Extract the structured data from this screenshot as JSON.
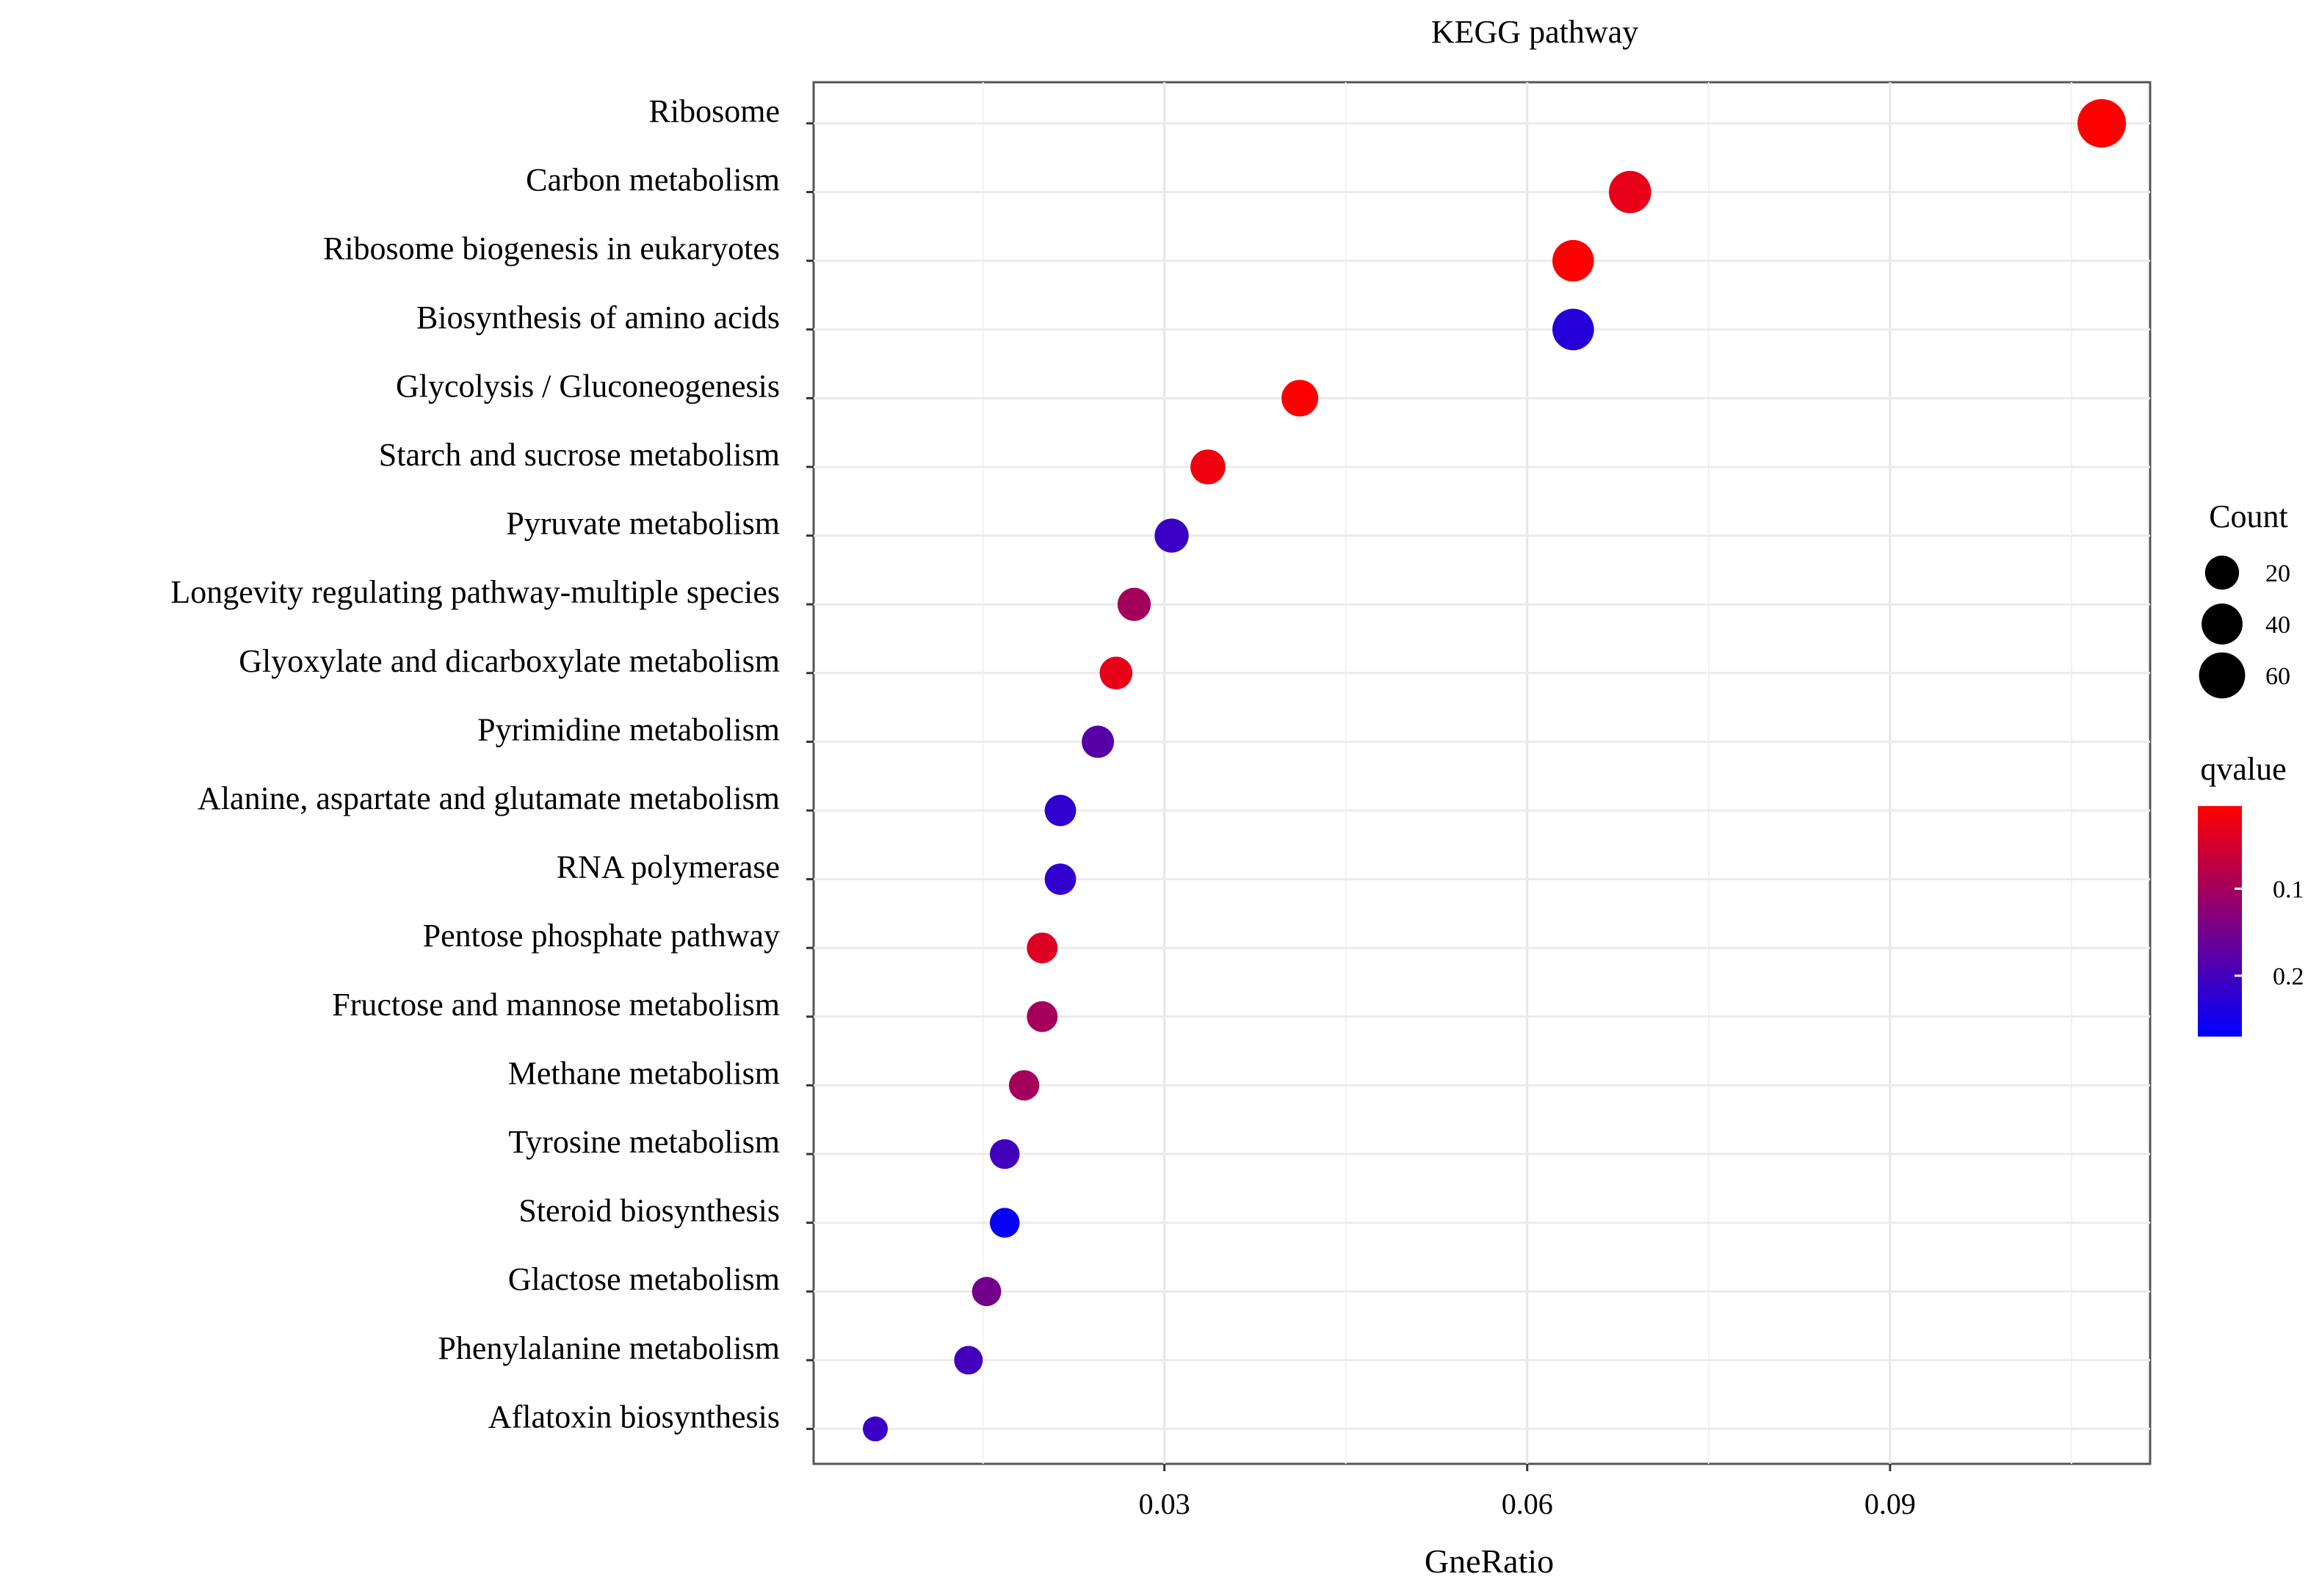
{
  "chart_data": {
    "type": "scatter",
    "title": "KEGG pathway",
    "xlabel": "GneRatio",
    "ylabel": "",
    "xlim": [
      0.001,
      0.1115
    ],
    "xticks": [
      0.03,
      0.06,
      0.09
    ],
    "xtick_labels": [
      "0.03",
      "0.06",
      "0.09"
    ],
    "grid": true,
    "categories": [
      "Ribosome",
      "Carbon metabolism",
      "Ribosome biogenesis in eukaryotes",
      "Biosynthesis of amino acids",
      "Glycolysis / Gluconeogenesis",
      "Starch and sucrose metabolism",
      "Pyruvate metabolism",
      "Longevity regulating pathway-multiple species",
      "Glyoxylate and dicarboxylate metabolism",
      "Pyrimidine metabolism",
      "Alanine, aspartate and glutamate metabolism",
      "RNA polymerase",
      "Pentose phosphate pathway",
      "Fructose and mannose metabolism",
      "Methane metabolism",
      "Tyrosine metabolism",
      "Steroid biosynthesis",
      "Glactose metabolism",
      "Phenylalanine metabolism",
      "Aflatoxin biosynthesis"
    ],
    "gene_ratio": [
      0.1075,
      0.0685,
      0.0638,
      0.0638,
      0.0412,
      0.0336,
      0.0306,
      0.0275,
      0.026,
      0.0245,
      0.0214,
      0.0214,
      0.0199,
      0.0199,
      0.0184,
      0.0168,
      0.0168,
      0.0153,
      0.0138,
      0.0061
    ],
    "count": [
      70,
      45,
      42,
      42,
      27,
      22,
      20,
      18,
      17,
      16,
      14,
      14,
      13,
      13,
      12,
      11,
      11,
      10,
      9,
      4
    ],
    "qvalue": [
      0.005,
      0.03,
      0.005,
      0.23,
      0.005,
      0.02,
      0.21,
      0.1,
      0.03,
      0.18,
      0.22,
      0.22,
      0.04,
      0.1,
      0.1,
      0.2,
      0.26,
      0.15,
      0.2,
      0.21
    ],
    "legend": {
      "size_title": "Count",
      "size_values": [
        20,
        40,
        60
      ],
      "color_title": "qvalue",
      "color_ticks": [
        0.1,
        0.2
      ],
      "color_tick_labels": [
        "0.1",
        "0.2"
      ],
      "color_range": [
        0.005,
        0.27
      ],
      "color_low": "#ff0000",
      "color_high": "#0000ff",
      "position": "right"
    }
  }
}
